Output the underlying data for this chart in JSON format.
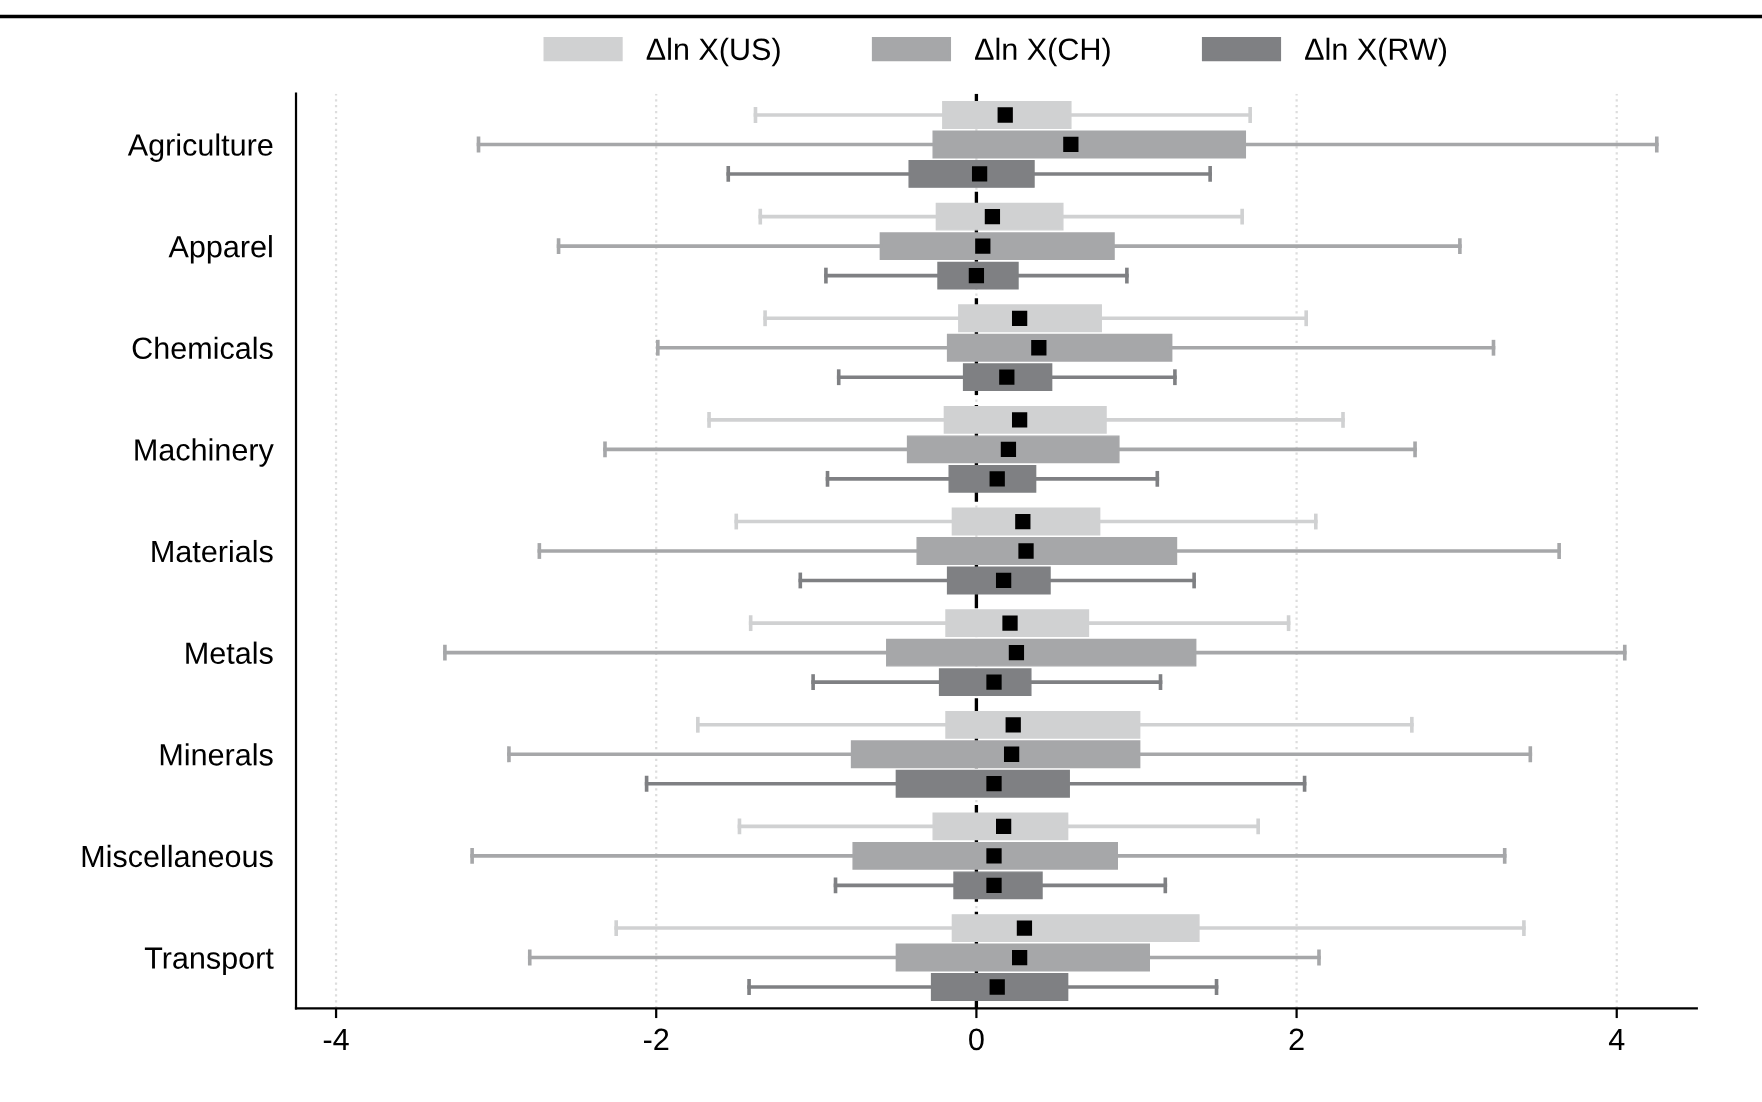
{
  "chart_data": {
    "type": "box",
    "orientation": "horizontal",
    "categories": [
      "Agriculture",
      "Apparel",
      "Chemicals",
      "Machinery",
      "Materials",
      "Metals",
      "Minerals",
      "Miscellaneous",
      "Transport"
    ],
    "series": [
      {
        "name": "Δln X(US)",
        "color": "#d0d1d2",
        "boxes": [
          {
            "low": -1.38,
            "q1": -0.21,
            "median": 0.18,
            "q3": 0.59,
            "high": 1.71
          },
          {
            "low": -1.35,
            "q1": -0.25,
            "median": 0.1,
            "q3": 0.54,
            "high": 1.66
          },
          {
            "low": -1.32,
            "q1": -0.11,
            "median": 0.27,
            "q3": 0.78,
            "high": 2.06
          },
          {
            "low": -1.67,
            "q1": -0.2,
            "median": 0.27,
            "q3": 0.81,
            "high": 2.29
          },
          {
            "low": -1.5,
            "q1": -0.15,
            "median": 0.29,
            "q3": 0.77,
            "high": 2.12
          },
          {
            "low": -1.41,
            "q1": -0.19,
            "median": 0.21,
            "q3": 0.7,
            "high": 1.95
          },
          {
            "low": -1.74,
            "q1": -0.19,
            "median": 0.23,
            "q3": 1.02,
            "high": 2.72
          },
          {
            "low": -1.48,
            "q1": -0.27,
            "median": 0.17,
            "q3": 0.57,
            "high": 1.76
          },
          {
            "low": -2.25,
            "q1": -0.15,
            "median": 0.3,
            "q3": 1.39,
            "high": 3.42
          }
        ]
      },
      {
        "name": "Δln X(CH)",
        "color": "#a6a7a9",
        "boxes": [
          {
            "low": -3.11,
            "q1": -0.27,
            "median": 0.59,
            "q3": 1.68,
            "high": 4.25
          },
          {
            "low": -2.61,
            "q1": -0.6,
            "median": 0.04,
            "q3": 0.86,
            "high": 3.02
          },
          {
            "low": -1.99,
            "q1": -0.18,
            "median": 0.39,
            "q3": 1.22,
            "high": 3.23
          },
          {
            "low": -2.32,
            "q1": -0.43,
            "median": 0.2,
            "q3": 0.89,
            "high": 2.74
          },
          {
            "low": -2.73,
            "q1": -0.37,
            "median": 0.31,
            "q3": 1.25,
            "high": 3.64
          },
          {
            "low": -3.32,
            "q1": -0.56,
            "median": 0.25,
            "q3": 1.37,
            "high": 4.05
          },
          {
            "low": -2.92,
            "q1": -0.78,
            "median": 0.22,
            "q3": 1.02,
            "high": 3.46
          },
          {
            "low": -3.15,
            "q1": -0.77,
            "median": 0.11,
            "q3": 0.88,
            "high": 3.3
          },
          {
            "low": -2.79,
            "q1": -0.5,
            "median": 0.27,
            "q3": 1.08,
            "high": 2.14
          }
        ]
      },
      {
        "name": "Δln X(RW)",
        "color": "#7f8083",
        "boxes": [
          {
            "low": -1.55,
            "q1": -0.42,
            "median": 0.02,
            "q3": 0.36,
            "high": 1.46
          },
          {
            "low": -0.94,
            "q1": -0.24,
            "median": 0.0,
            "q3": 0.26,
            "high": 0.94
          },
          {
            "low": -0.86,
            "q1": -0.08,
            "median": 0.19,
            "q3": 0.47,
            "high": 1.24
          },
          {
            "low": -0.93,
            "q1": -0.17,
            "median": 0.13,
            "q3": 0.37,
            "high": 1.13
          },
          {
            "low": -1.1,
            "q1": -0.18,
            "median": 0.17,
            "q3": 0.46,
            "high": 1.36
          },
          {
            "low": -1.02,
            "q1": -0.23,
            "median": 0.11,
            "q3": 0.34,
            "high": 1.15
          },
          {
            "low": -2.06,
            "q1": -0.5,
            "median": 0.11,
            "q3": 0.58,
            "high": 2.05
          },
          {
            "low": -0.88,
            "q1": -0.14,
            "median": 0.11,
            "q3": 0.41,
            "high": 1.18
          },
          {
            "low": -1.42,
            "q1": -0.28,
            "median": 0.13,
            "q3": 0.57,
            "high": 1.5
          }
        ]
      }
    ],
    "xlim": [
      -4.25,
      4.5
    ],
    "xticks": [
      -4,
      -2,
      0,
      2,
      4
    ],
    "grid": "x",
    "legend": "top",
    "marker": "square",
    "ref_lines": [
      {
        "axis": "x",
        "value": 0,
        "line_style": "dashed",
        "color": "#000000"
      }
    ]
  }
}
